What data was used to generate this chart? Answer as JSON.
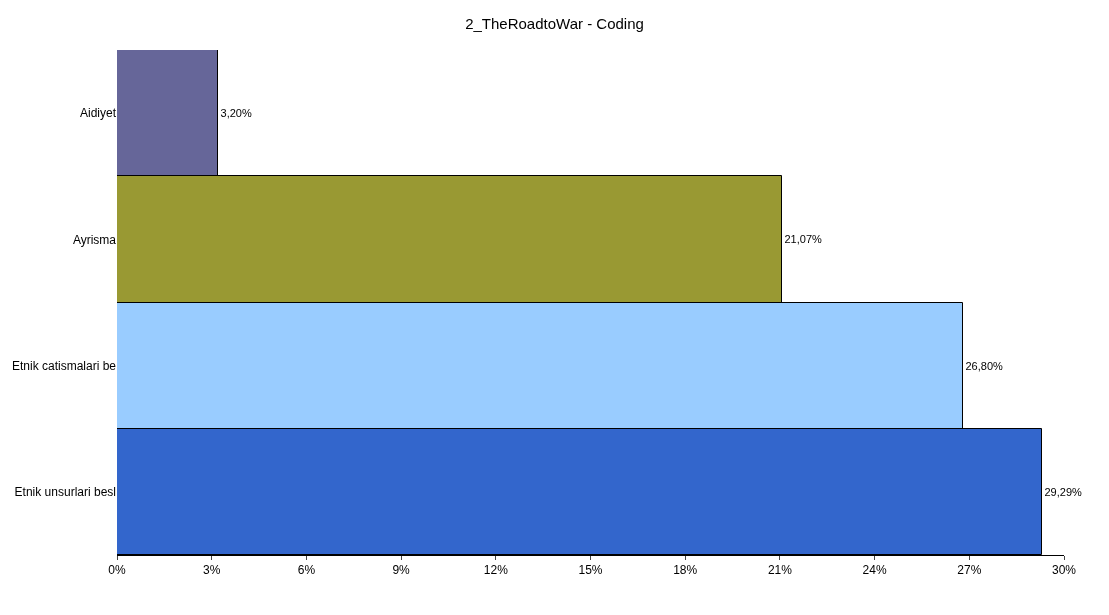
{
  "chart_data": {
    "type": "bar",
    "orientation": "horizontal",
    "title": "2_TheRoadtoWar - Coding",
    "categories": [
      "Aidiyet",
      "Ayrisma",
      "Etnik catismalari be",
      "Etnik unsurlari besl"
    ],
    "values": [
      3.2,
      21.07,
      26.8,
      29.29
    ],
    "value_labels": [
      "3,20%",
      "21,07%",
      "26,80%",
      "29,29%"
    ],
    "colors": [
      "#666699",
      "#999933",
      "#99ccff",
      "#3366cc"
    ],
    "xlim": [
      0,
      30
    ],
    "xticks": [
      {
        "value": 0,
        "label": "0%"
      },
      {
        "value": 3,
        "label": "3%"
      },
      {
        "value": 6,
        "label": "6%"
      },
      {
        "value": 9,
        "label": "9%"
      },
      {
        "value": 12,
        "label": "12%"
      },
      {
        "value": 15,
        "label": "15%"
      },
      {
        "value": 18,
        "label": "18%"
      },
      {
        "value": 21,
        "label": "21%"
      },
      {
        "value": 24,
        "label": "24%"
      },
      {
        "value": 27,
        "label": "27%"
      },
      {
        "value": 30,
        "label": "30%"
      }
    ],
    "legend": false
  }
}
